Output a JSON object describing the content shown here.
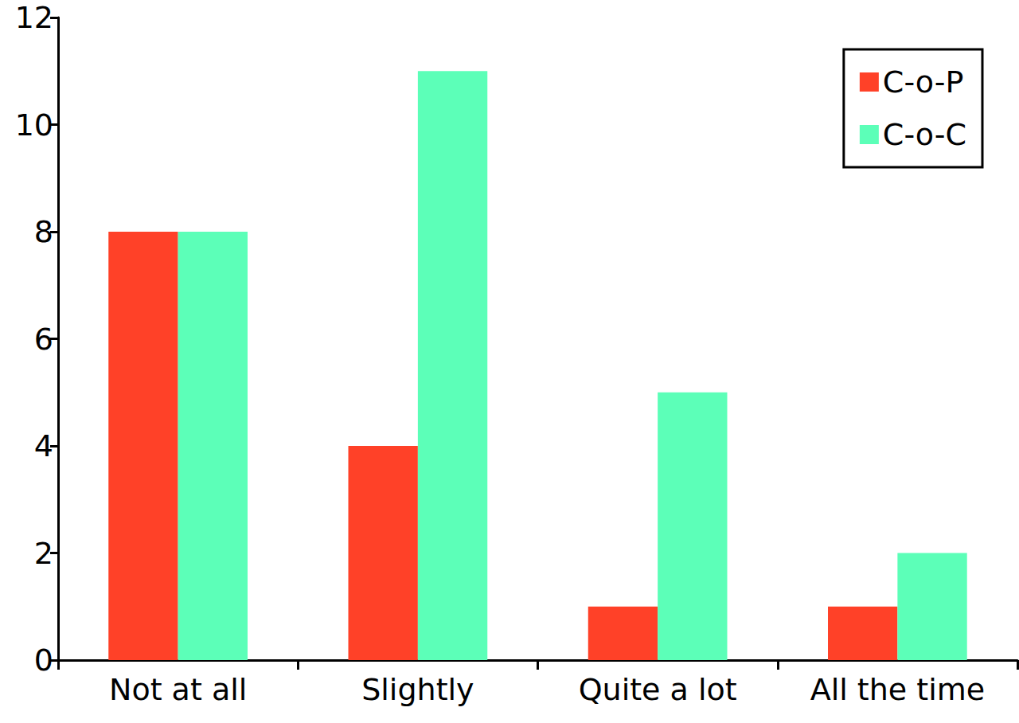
{
  "chart_data": {
    "type": "bar",
    "categories": [
      "Not at all",
      "Slightly",
      "Quite a lot",
      "All the time"
    ],
    "series": [
      {
        "name": "C-o-P",
        "color": "#ff4128",
        "values": [
          8,
          4,
          1,
          1
        ]
      },
      {
        "name": "C-o-C",
        "color": "#5cffb8",
        "values": [
          8,
          11,
          5,
          2
        ]
      }
    ],
    "ylim": [
      0,
      12
    ],
    "yticks": [
      0,
      2,
      4,
      6,
      8,
      10,
      12
    ],
    "grid": false,
    "legend": "top-right"
  }
}
